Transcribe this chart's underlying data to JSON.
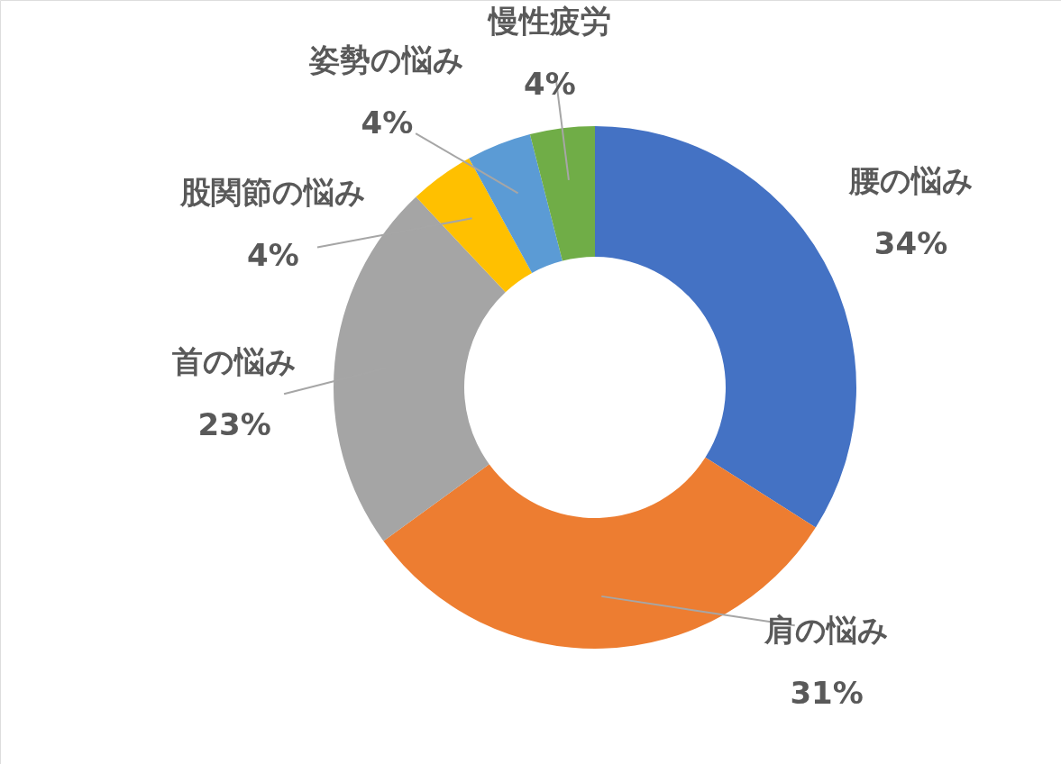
{
  "chart_data": {
    "type": "donut",
    "categories": [
      "腰の悩み",
      "肩の悩み",
      "首の悩み",
      "股関節の悩み",
      "姿勢の悩み",
      "慢性疲労"
    ],
    "values": [
      34,
      31,
      23,
      4,
      4,
      4
    ],
    "colors": [
      "#4472c4",
      "#ed7d31",
      "#a5a5a5",
      "#ffc000",
      "#5b9bd5",
      "#70ad47"
    ],
    "value_labels": [
      "34%",
      "31%",
      "23%",
      "4%",
      "4%",
      "4%"
    ]
  }
}
